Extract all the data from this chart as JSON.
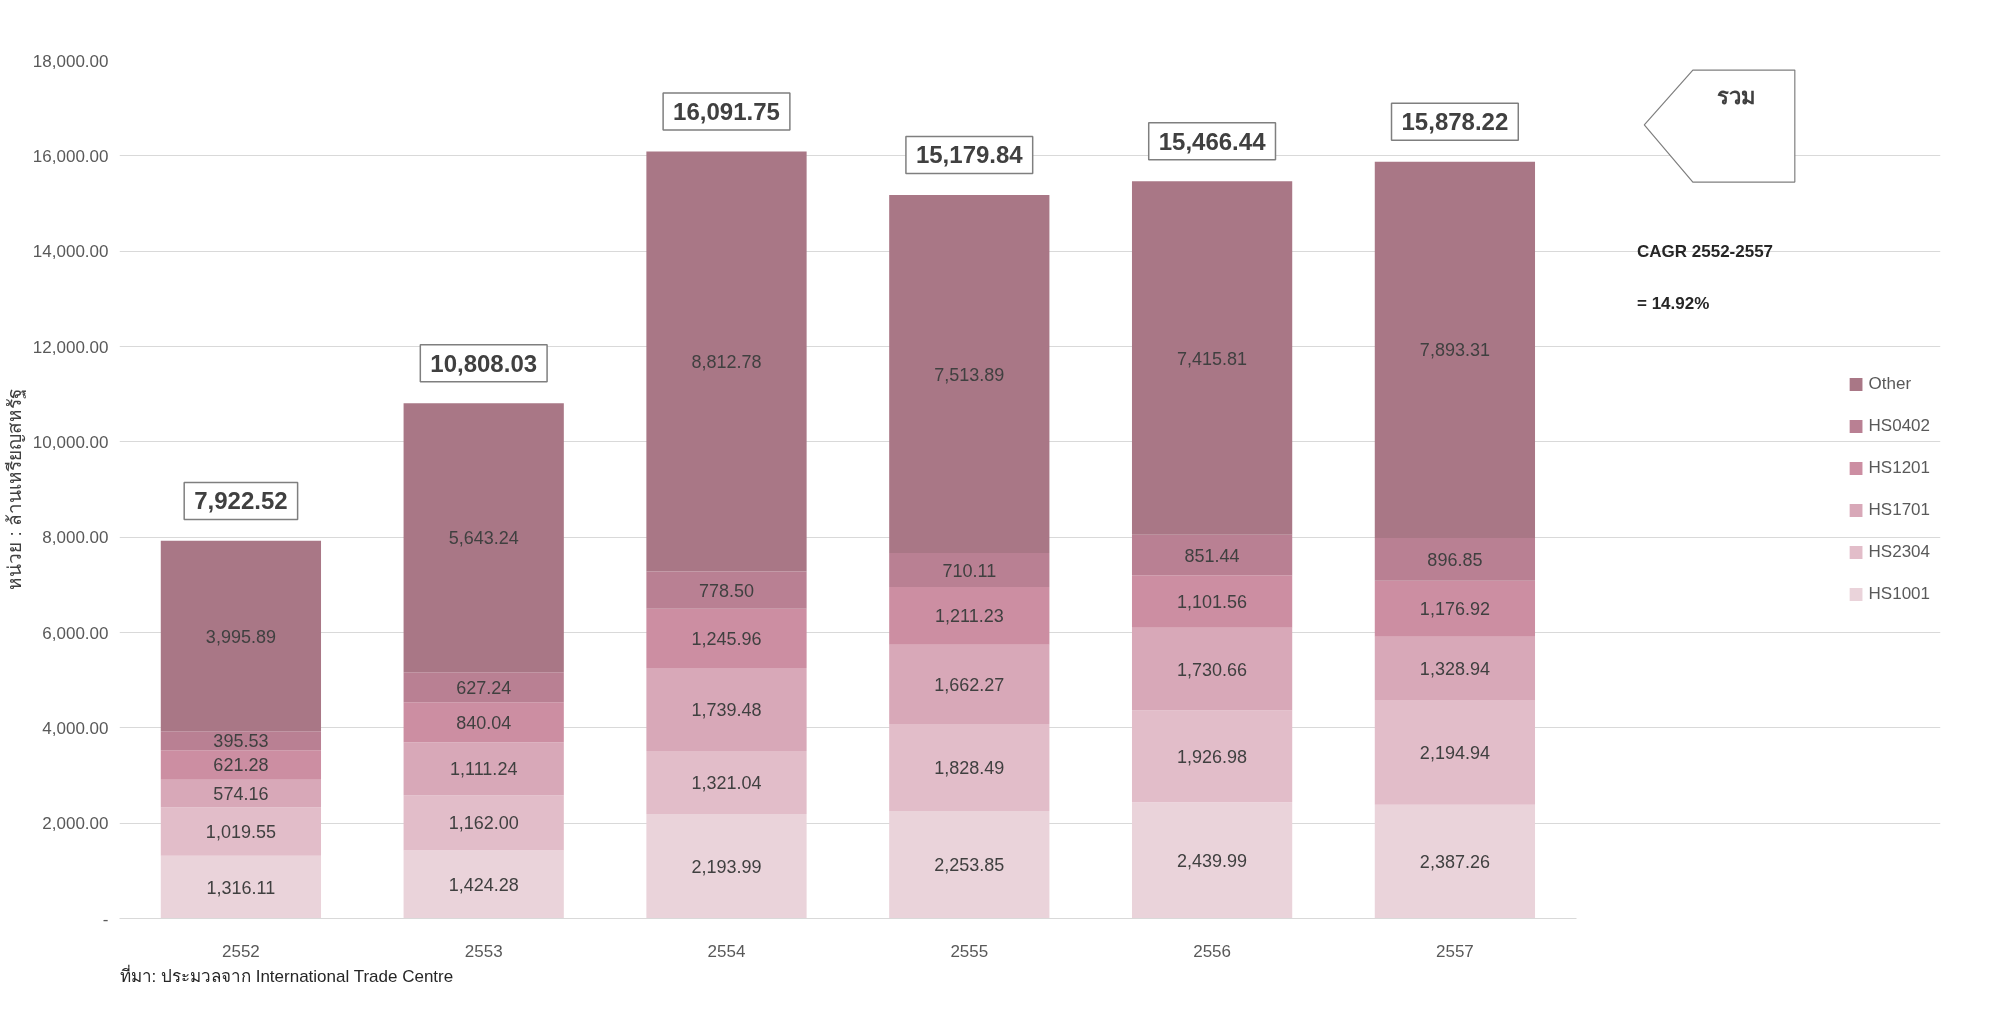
{
  "chart_data": {
    "type": "bar",
    "stacked": true,
    "ylabel": "หน่วย : ล้านเหรียญสหรัฐ",
    "categories": [
      "2552",
      "2553",
      "2554",
      "2555",
      "2556",
      "2557"
    ],
    "series": [
      {
        "name": "HS1001",
        "color": "#ead3da",
        "values": [
          1316.11,
          1424.28,
          2193.99,
          2253.85,
          2439.99,
          2387.26
        ],
        "value_labels": [
          "1,316.11",
          "1,424.28",
          "2,193.99",
          "2,253.85",
          "2,439.99",
          "2,387.26"
        ]
      },
      {
        "name": "HS2304",
        "color": "#e2bdc9",
        "values": [
          1019.55,
          1162.0,
          1321.04,
          1828.49,
          1926.98,
          2194.94
        ],
        "value_labels": [
          "1,019.55",
          "1,162.00",
          "1,321.04",
          "1,828.49",
          "1,926.98",
          "2,194.94"
        ]
      },
      {
        "name": "HS1701",
        "color": "#d8a8b8",
        "values": [
          574.16,
          1111.24,
          1739.48,
          1662.27,
          1730.66,
          1328.94
        ],
        "value_labels": [
          "574.16",
          "1,111.24",
          "1,739.48",
          "1,662.27",
          "1,730.66",
          "1,328.94"
        ]
      },
      {
        "name": "HS1201",
        "color": "#cc8ea2",
        "values": [
          621.28,
          840.04,
          1245.96,
          1211.23,
          1101.56,
          1176.92
        ],
        "value_labels": [
          "621.28",
          "840.04",
          "1,245.96",
          "1,211.23",
          "1,101.56",
          "1,176.92"
        ]
      },
      {
        "name": "HS0402",
        "color": "#b98093",
        "values": [
          395.53,
          627.24,
          778.5,
          710.11,
          851.44,
          896.85
        ],
        "value_labels": [
          "395.53",
          "627.24",
          "778.50",
          "710.11",
          "851.44",
          "896.85"
        ]
      },
      {
        "name": "Other",
        "color": "#a97786",
        "values": [
          3995.89,
          5643.24,
          8812.78,
          7513.89,
          7415.81,
          7893.31
        ],
        "value_labels": [
          "3,995.89",
          "5,643.24",
          "8,812.78",
          "7,513.89",
          "7,415.81",
          "7,893.31"
        ]
      }
    ],
    "totals": [
      "7,922.52",
      "10,808.03",
      "16,091.75",
      "15,179.84",
      "15,466.44",
      "15,878.22"
    ],
    "ylim": [
      0,
      18000
    ],
    "yticks": [
      {
        "value": 0,
        "label": "-"
      },
      {
        "value": 2000,
        "label": "2,000.00"
      },
      {
        "value": 4000,
        "label": "4,000.00"
      },
      {
        "value": 6000,
        "label": "6,000.00"
      },
      {
        "value": 8000,
        "label": "8,000.00"
      },
      {
        "value": 10000,
        "label": "10,000.00"
      },
      {
        "value": 12000,
        "label": "12,000.00"
      },
      {
        "value": 14000,
        "label": "14,000.00"
      },
      {
        "value": 16000,
        "label": "16,000.00"
      },
      {
        "value": 18000,
        "label": "18,000.00"
      }
    ],
    "grid": "y",
    "legend": "right",
    "annotations": [
      "รวม",
      "CAGR 2552-2557",
      "= 14.92%",
      "ที่มา: ประมวลจาก International Trade Centre"
    ]
  }
}
